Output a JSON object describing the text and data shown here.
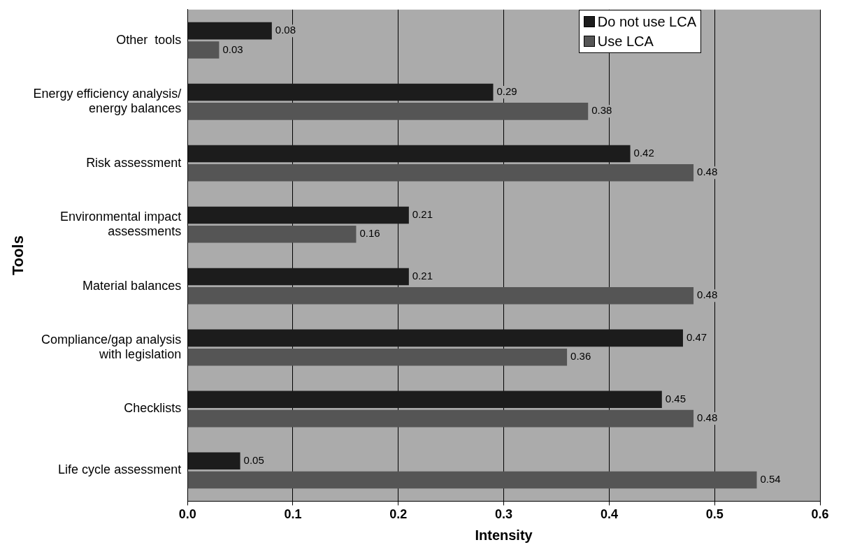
{
  "chart_data": {
    "type": "bar",
    "orientation": "horizontal",
    "xlabel": "Intensity",
    "ylabel": "Tools",
    "categories": [
      "Other  tools",
      "Energy efficiency analysis/ energy balances",
      "Risk assessment",
      "Environmental impact assessments",
      "Material balances",
      "Compliance/gap analysis with legislation",
      "Checklists",
      "Life cycle assessment"
    ],
    "series": [
      {
        "name": "Do not use LCA",
        "color": "#1c1c1c",
        "values": [
          0.08,
          0.29,
          0.42,
          0.21,
          0.21,
          0.47,
          0.45,
          0.05
        ]
      },
      {
        "name": "Use LCA",
        "color": "#555555",
        "values": [
          0.03,
          0.38,
          0.48,
          0.16,
          0.48,
          0.36,
          0.48,
          0.54
        ]
      }
    ],
    "xlim": [
      0,
      0.6
    ],
    "xticks": [
      {
        "value": 0,
        "label": "0.0"
      },
      {
        "value": 0.1,
        "label": "0.1"
      },
      {
        "value": 0.2,
        "label": "0.2"
      },
      {
        "value": 0.3,
        "label": "0.3"
      },
      {
        "value": 0.4,
        "label": "0.4"
      },
      {
        "value": 0.5,
        "label": "0.5"
      },
      {
        "value": 0.6,
        "label": "0.6"
      }
    ],
    "grid": "x",
    "legend": "top right",
    "data_labels": true
  }
}
